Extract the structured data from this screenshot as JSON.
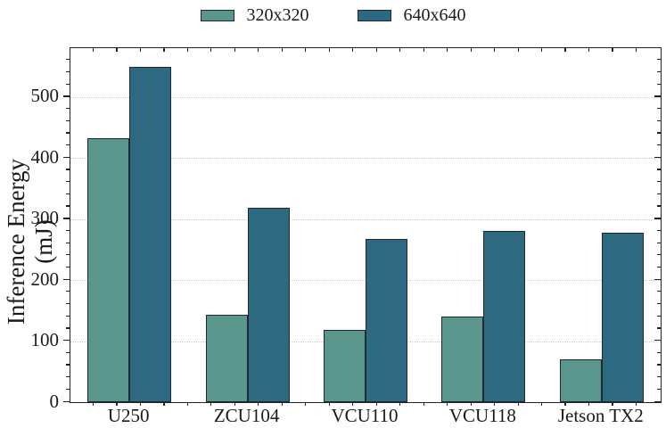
{
  "chart_data": {
    "type": "bar",
    "title": "",
    "xlabel": "",
    "ylabel": "Inference Energy (mJ)",
    "categories": [
      "U250",
      "ZCU104",
      "VCU110",
      "VCU118",
      "Jetson TX2"
    ],
    "series": [
      {
        "name": "320x320",
        "color": "#5a968c",
        "values": [
          432,
          143,
          118,
          140,
          70
        ]
      },
      {
        "name": "640x640",
        "color": "#2d6980",
        "values": [
          550,
          318,
          267,
          280,
          277
        ]
      }
    ],
    "ylim": [
      0,
      580
    ],
    "yticks": [
      0,
      100,
      200,
      300,
      400,
      500
    ],
    "y_minor_step": 20,
    "grid": "horizontal-dotted",
    "legend_position": "top-center",
    "colors": {
      "bar_edge": "#1e2a33",
      "grid": "#c9c9c9",
      "axis": "#222222",
      "text": "#1a1a1a",
      "background": "#ffffff"
    }
  }
}
